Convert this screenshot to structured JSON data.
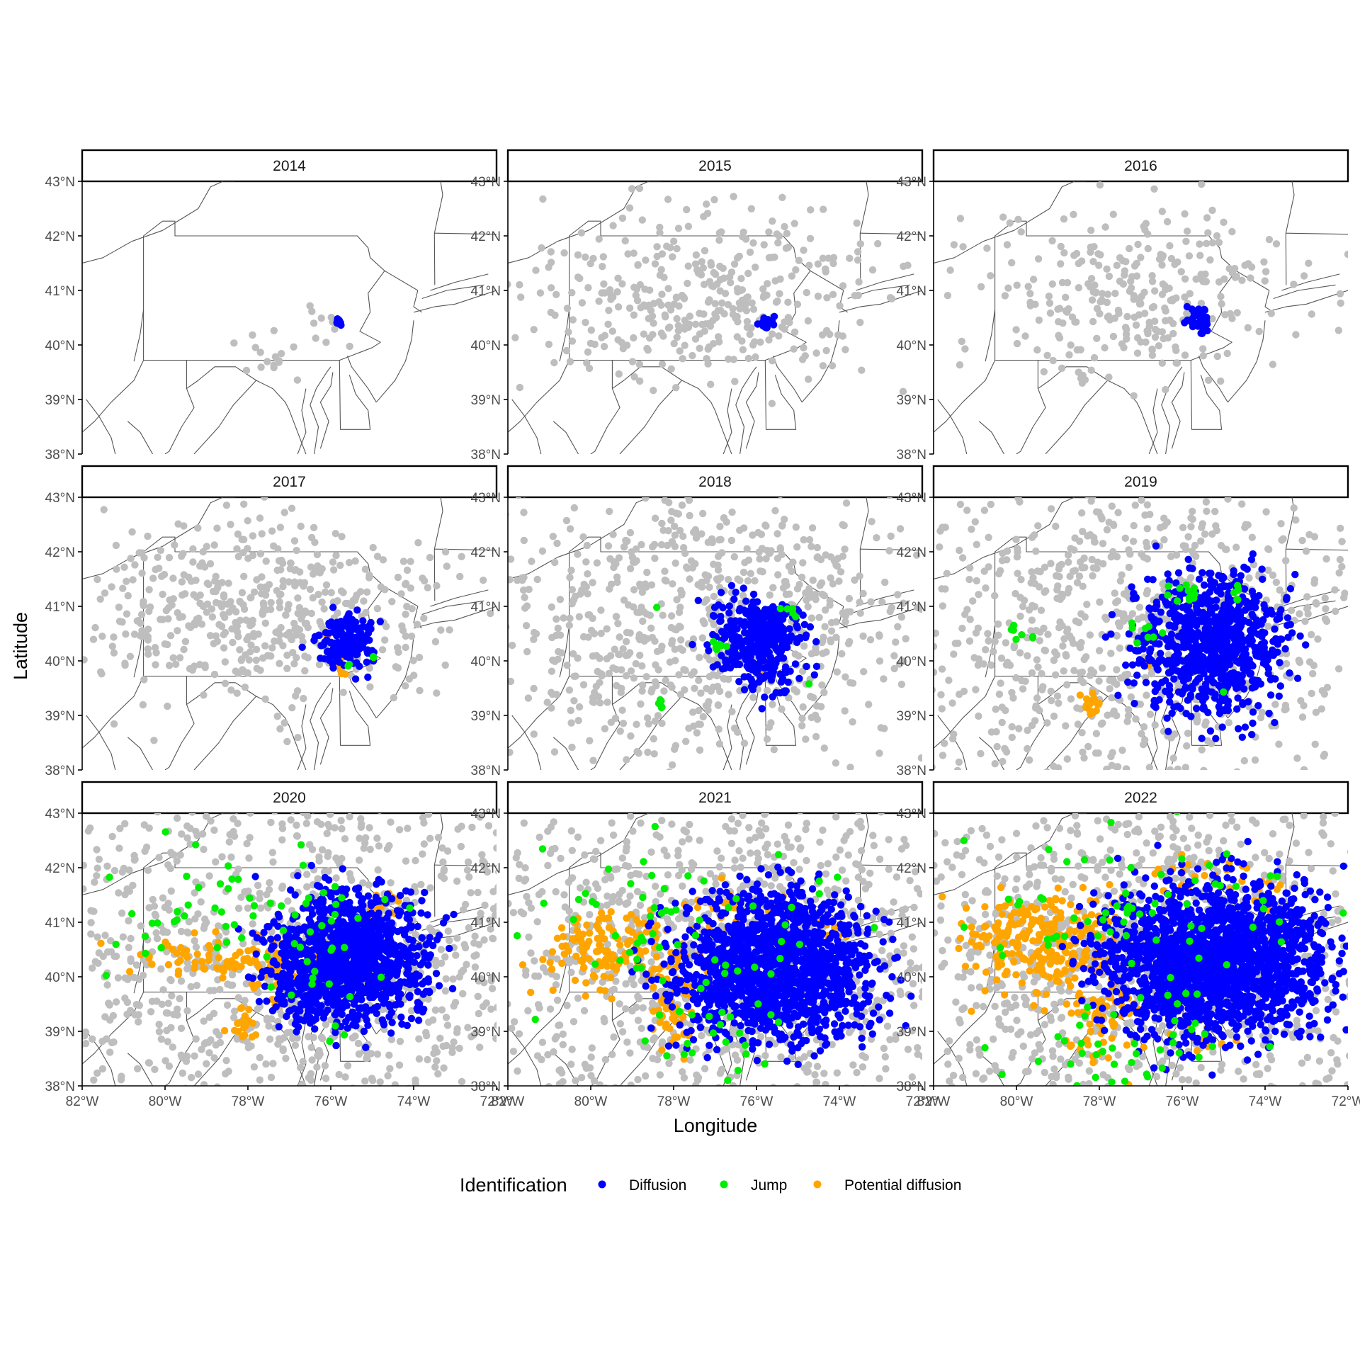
{
  "chart_data": {
    "type": "scatter",
    "chart_kind": "faceted map of occurrence points",
    "xlabel": "Longitude",
    "ylabel": "Latitude",
    "xlim": [
      -82,
      -72
    ],
    "ylim": [
      38,
      43
    ],
    "x_ticks": [
      -82,
      -80,
      -78,
      -76,
      -74,
      -72
    ],
    "x_tick_labels": [
      "82°W",
      "80°W",
      "78°W",
      "76°W",
      "74°W",
      "72°W"
    ],
    "y_ticks": [
      38,
      39,
      40,
      41,
      42,
      43
    ],
    "y_tick_labels": [
      "38°N",
      "39°N",
      "40°N",
      "41°N",
      "42°N",
      "43°N"
    ],
    "grid": false,
    "legend": {
      "title": "Identification",
      "position": "bottom",
      "entries": [
        {
          "label": "Diffusion",
          "color": "#0000ff"
        },
        {
          "label": "Jump",
          "color": "#00ee00"
        },
        {
          "label": "Potential diffusion",
          "color": "#ffa500"
        }
      ]
    },
    "background_points_color": "#bebebe",
    "facets": [
      {
        "label": "2014",
        "survey_extent": [
          [
            -77.5,
            39.8,
            0.45,
            0.3,
            16
          ],
          [
            -76.1,
            40.4,
            0.3,
            0.25,
            10
          ]
        ],
        "diffusion": [
          [
            -75.8,
            40.43,
            0.06,
            0.06,
            8
          ]
        ],
        "jump": [],
        "potential": []
      },
      {
        "label": "2015",
        "survey_extent": [
          [
            -77.5,
            40.9,
            2.8,
            1.05,
            380
          ]
        ],
        "diffusion": [
          [
            -75.75,
            40.42,
            0.14,
            0.08,
            22
          ]
        ],
        "jump": [],
        "potential": []
      },
      {
        "label": "2016",
        "survey_extent": [
          [
            -77.2,
            40.9,
            2.5,
            1.05,
            300
          ]
        ],
        "diffusion": [
          [
            -75.6,
            40.45,
            0.2,
            0.18,
            40
          ]
        ],
        "jump": [],
        "potential": []
      },
      {
        "label": "2017",
        "survey_extent": [
          [
            -77.6,
            40.9,
            3.0,
            1.1,
            520
          ]
        ],
        "diffusion": [
          [
            -75.65,
            40.4,
            0.45,
            0.35,
            160
          ]
        ],
        "jump": [
          [
            -75.0,
            40.1,
            0.12,
            0.08,
            3
          ],
          [
            -75.5,
            39.95,
            0.05,
            0.05,
            2
          ]
        ],
        "potential": [
          [
            -75.85,
            39.9,
            0.12,
            0.1,
            10
          ],
          [
            -76.05,
            40.5,
            0.04,
            0.04,
            2
          ]
        ]
      },
      {
        "label": "2018",
        "survey_extent": [
          [
            -77.3,
            40.7,
            3.6,
            1.8,
            800
          ]
        ],
        "diffusion": [
          [
            -75.85,
            40.35,
            0.75,
            0.55,
            380
          ]
        ],
        "jump": [
          [
            -78.3,
            39.2,
            0.08,
            0.08,
            5
          ],
          [
            -77.0,
            40.3,
            0.15,
            0.1,
            6
          ],
          [
            -75.15,
            40.95,
            0.15,
            0.08,
            5
          ],
          [
            -74.7,
            39.6,
            0.05,
            0.05,
            1
          ],
          [
            -78.4,
            40.95,
            0.04,
            0.04,
            1
          ]
        ],
        "potential": [
          [
            -75.9,
            40.8,
            0.1,
            0.1,
            12
          ],
          [
            -75.85,
            39.85,
            0.12,
            0.08,
            12
          ]
        ]
      },
      {
        "label": "2019",
        "survey_extent": [
          [
            -77.0,
            40.5,
            4.2,
            2.3,
            1000
          ]
        ],
        "diffusion": [
          [
            -75.3,
            40.3,
            1.15,
            0.85,
            800
          ]
        ],
        "jump": [
          [
            -76.0,
            41.25,
            0.25,
            0.15,
            12
          ],
          [
            -74.7,
            41.25,
            0.12,
            0.12,
            6
          ],
          [
            -80.2,
            40.5,
            0.4,
            0.15,
            7
          ],
          [
            -77.0,
            40.5,
            0.4,
            0.2,
            8
          ],
          [
            -75.0,
            39.4,
            0.05,
            0.05,
            1
          ]
        ],
        "potential": [
          [
            -78.2,
            39.2,
            0.15,
            0.15,
            18
          ],
          [
            -76.8,
            39.95,
            0.05,
            0.05,
            2
          ]
        ]
      },
      {
        "label": "2020",
        "survey_extent": [
          [
            -77.0,
            40.4,
            5.0,
            2.6,
            1300
          ]
        ],
        "diffusion": [
          [
            -75.6,
            40.35,
            1.25,
            0.8,
            1200
          ]
        ],
        "jump": [
          [
            -78.0,
            41.1,
            2.5,
            0.8,
            60
          ],
          [
            -76.4,
            39.3,
            0.8,
            0.6,
            10
          ]
        ],
        "potential": [
          [
            -78.8,
            40.35,
            1.6,
            0.25,
            90
          ],
          [
            -77.3,
            39.9,
            0.3,
            0.3,
            20
          ],
          [
            -78.2,
            39.15,
            0.3,
            0.2,
            20
          ],
          [
            -74.7,
            41.2,
            0.3,
            0.25,
            14
          ]
        ]
      },
      {
        "label": "2021",
        "survey_extent": [
          [
            -77.0,
            40.4,
            5.0,
            2.6,
            1300
          ]
        ],
        "diffusion": [
          [
            -75.6,
            40.2,
            1.55,
            0.9,
            1500
          ]
        ],
        "jump": [
          [
            -78.0,
            41.0,
            2.5,
            1.0,
            55
          ],
          [
            -77.0,
            39.2,
            1.3,
            0.7,
            30
          ]
        ],
        "potential": [
          [
            -79.3,
            40.45,
            1.3,
            0.45,
            160
          ],
          [
            -78.0,
            39.3,
            0.4,
            0.4,
            40
          ],
          [
            -76.8,
            41.3,
            1.0,
            0.3,
            25
          ],
          [
            -74.2,
            40.9,
            0.4,
            0.2,
            10
          ]
        ]
      },
      {
        "label": "2022",
        "survey_extent": [
          [
            -77.0,
            40.4,
            5.0,
            2.6,
            1300
          ]
        ],
        "diffusion": [
          [
            -75.3,
            40.3,
            1.8,
            0.95,
            1800
          ],
          [
            -73.4,
            40.9,
            0.6,
            0.15,
            40
          ]
        ],
        "jump": [
          [
            -77.5,
            41.2,
            3.0,
            1.1,
            70
          ],
          [
            -77.5,
            38.7,
            2.0,
            0.6,
            40
          ]
        ],
        "potential": [
          [
            -79.3,
            40.6,
            1.4,
            0.6,
            250
          ],
          [
            -78.0,
            39.2,
            0.6,
            0.5,
            60
          ],
          [
            -75.6,
            38.9,
            0.4,
            0.3,
            20
          ],
          [
            -75.9,
            41.8,
            1.0,
            0.3,
            20
          ],
          [
            -73.9,
            41.5,
            0.3,
            0.4,
            14
          ]
        ]
      }
    ]
  }
}
